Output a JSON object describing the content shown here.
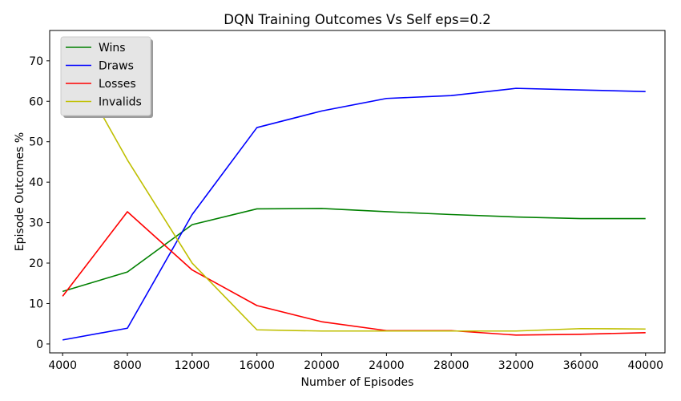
{
  "chart_data": {
    "type": "line",
    "title": "DQN Training Outcomes Vs Self eps=0.2",
    "xlabel": "Number of Episodes",
    "ylabel": "Episode Outcomes %",
    "x": [
      4000,
      8000,
      12000,
      16000,
      20000,
      24000,
      28000,
      32000,
      36000,
      40000
    ],
    "xticks": [
      4000,
      8000,
      12000,
      16000,
      20000,
      24000,
      28000,
      32000,
      36000,
      40000
    ],
    "yticks": [
      0,
      10,
      20,
      30,
      40,
      50,
      60,
      70
    ],
    "xlim": [
      3200,
      41200
    ],
    "ylim": [
      -2.2,
      77.5
    ],
    "grid": false,
    "legend_position": "top-left",
    "series": [
      {
        "name": "Wins",
        "color": "#008000",
        "values": [
          13.0,
          17.8,
          29.5,
          33.4,
          33.5,
          32.7,
          32.0,
          31.4,
          31.0,
          31.0
        ]
      },
      {
        "name": "Draws",
        "color": "#0000ff",
        "values": [
          1.0,
          3.9,
          32.0,
          53.5,
          57.6,
          60.7,
          61.4,
          63.2,
          62.8,
          62.4
        ]
      },
      {
        "name": "Losses",
        "color": "#ff0000",
        "values": [
          11.8,
          32.7,
          18.3,
          9.5,
          5.5,
          3.3,
          3.3,
          2.2,
          2.4,
          2.8
        ]
      },
      {
        "name": "Invalids",
        "color": "#bfbf00",
        "values": [
          74.0,
          45.5,
          20.0,
          3.5,
          3.2,
          3.2,
          3.2,
          3.2,
          3.8,
          3.7
        ]
      }
    ]
  }
}
